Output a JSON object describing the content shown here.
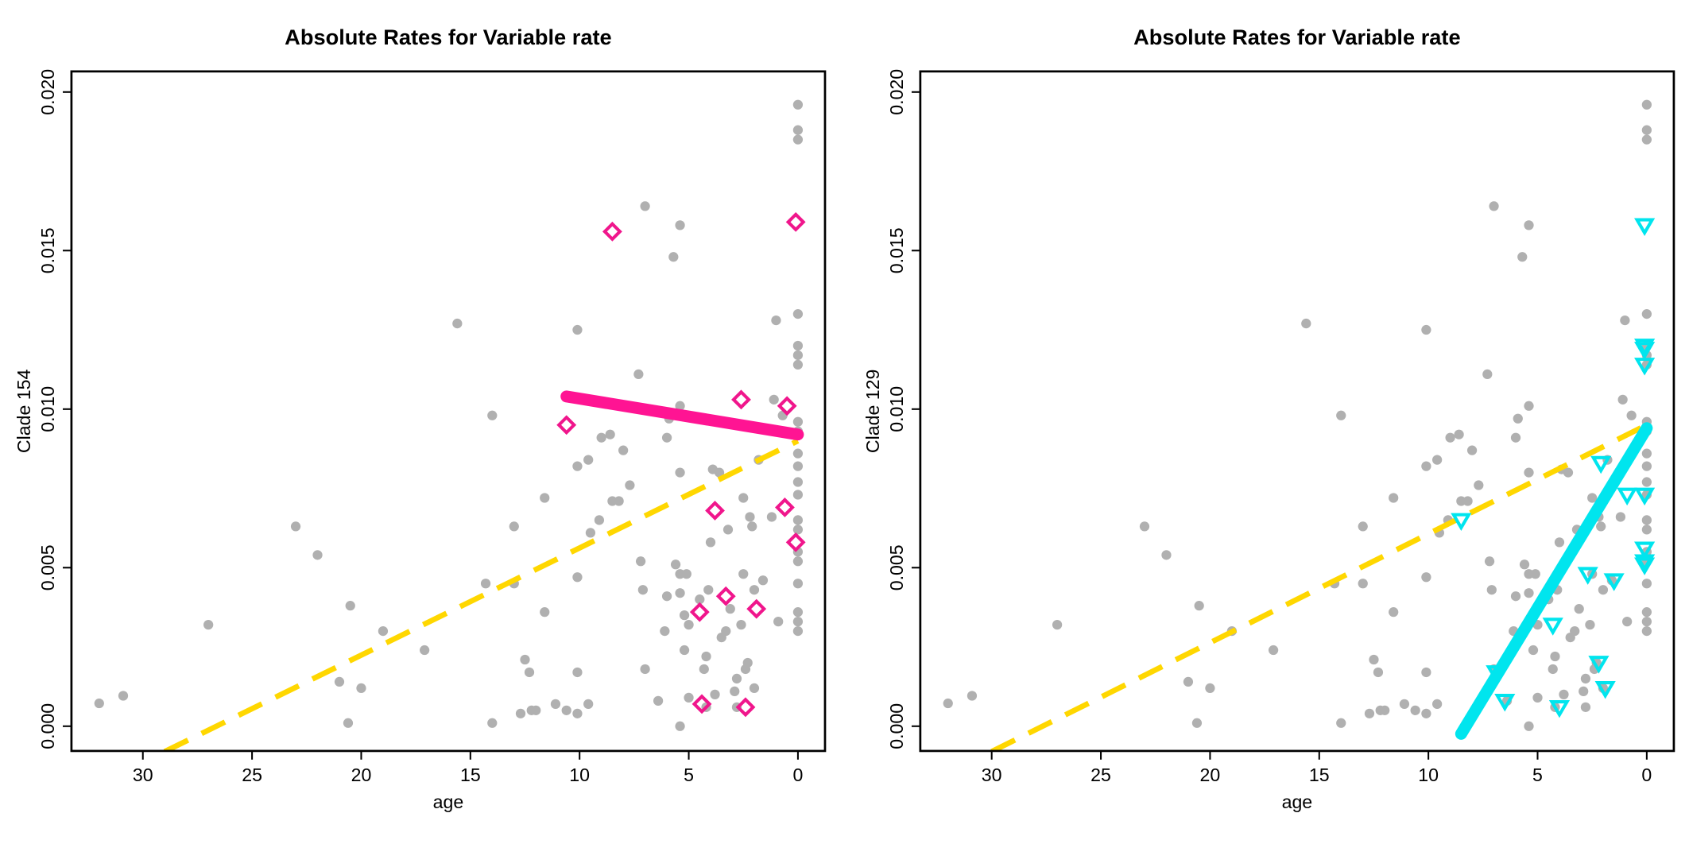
{
  "chart_data": [
    {
      "type": "scatter",
      "title": "Absolute Rates for Variable rate",
      "xlabel": "age",
      "ylabel": "Clade 154",
      "xlim": [
        33.27,
        -1.24
      ],
      "ylim": [
        -0.00078,
        0.02065
      ],
      "xticks": [
        30,
        25,
        20,
        15,
        10,
        5,
        0
      ],
      "yticks": [
        {
          "value": 0,
          "label": "0.000"
        },
        {
          "value": 0.005,
          "label": "0.005"
        },
        {
          "value": 0.01,
          "label": "0.010"
        },
        {
          "value": 0.015,
          "label": "0.015"
        },
        {
          "value": 0.02,
          "label": "0.020"
        }
      ],
      "series": [
        {
          "mode": "markers",
          "marker": "circle",
          "color": "#b0b0b0",
          "x": [
            32.0,
            30.9,
            27.0,
            23.0,
            22.0,
            21.0,
            20.6,
            20.5,
            20.0,
            19.0,
            17.1,
            15.6,
            14.0,
            14.0,
            14.3,
            13.0,
            13.0,
            12.7,
            12.5,
            12.3,
            12.2,
            12.0,
            11.6,
            11.6,
            11.1,
            10.6,
            10.1,
            10.1,
            10.1,
            10.1,
            10.1,
            9.6,
            9.6,
            9.5,
            9.1,
            9.0,
            8.6,
            8.5,
            8.2,
            8.0,
            7.7,
            7.3,
            7.2,
            7.0,
            7.1,
            7.0,
            6.4,
            6.1,
            6.0,
            6.0,
            5.9,
            5.7,
            5.6,
            5.4,
            5.4,
            5.4,
            5.4,
            5.4,
            5.2,
            5.2,
            5.0,
            5.4,
            5.1,
            5.0,
            4.5,
            4.3,
            4.2,
            4.2,
            4.1,
            4.0,
            3.9,
            3.8,
            3.6,
            3.5,
            3.3,
            3.2,
            3.1,
            2.9,
            2.8,
            2.8,
            2.6,
            2.5,
            2.5,
            2.4,
            2.3,
            2.2,
            2.1,
            2.0,
            2.0,
            1.8,
            1.6,
            1.2,
            1.0,
            1.1,
            0.9,
            0.7,
            0,
            0,
            0,
            0,
            0,
            0,
            0,
            0,
            0,
            0,
            0,
            0,
            0,
            0,
            0,
            0,
            0,
            0,
            0,
            0,
            0
          ],
          "values": [
            0.00072,
            0.00096,
            0.0032,
            0.0063,
            0.0054,
            0.0014,
            0.0001,
            0.0038,
            0.0012,
            0.003,
            0.0024,
            0.0127,
            0.0098,
            0.0001,
            0.0045,
            0.0063,
            0.0045,
            0.0004,
            0.0021,
            0.0017,
            0.0005,
            0.0005,
            0.0036,
            0.0072,
            0.0007,
            0.0005,
            0.0125,
            0.0047,
            0.0017,
            0.0004,
            0.0082,
            0.0084,
            0.0007,
            0.0061,
            0.0065,
            0.0091,
            0.0092,
            0.0071,
            0.0071,
            0.0087,
            0.0076,
            0.0111,
            0.0052,
            0.0164,
            0.0043,
            0.0018,
            0.0008,
            0.003,
            0.0091,
            0.0041,
            0.0097,
            0.0148,
            0.0051,
            0.0101,
            0.0158,
            0.008,
            0.0048,
            0.0042,
            0.0035,
            0.0024,
            0.0009,
            0.0,
            0.0048,
            0.0032,
            0.004,
            0.0018,
            0.0022,
            0.0006,
            0.0043,
            0.0058,
            0.0081,
            0.001,
            0.008,
            0.0028,
            0.003,
            0.0062,
            0.0037,
            0.0011,
            0.0006,
            0.0015,
            0.0032,
            0.0072,
            0.0048,
            0.0018,
            0.002,
            0.0066,
            0.0063,
            0.0043,
            0.0012,
            0.0084,
            0.0046,
            0.0066,
            0.0128,
            0.0103,
            0.0033,
            0.0098,
            0.0196,
            0.0188,
            0.0185,
            0.013,
            0.012,
            0.0117,
            0.0114,
            0.0096,
            0.0093,
            0.0086,
            0.0082,
            0.0077,
            0.0073,
            0.0065,
            0.0062,
            0.0055,
            0.0052,
            0.0045,
            0.0036,
            0.0033,
            0.003
          ]
        },
        {
          "mode": "lines",
          "dash": true,
          "color": "#ffd700",
          "x": [
            29.0,
            0.0
          ],
          "values": [
            -0.0008,
            0.009
          ]
        },
        {
          "mode": "markers",
          "marker": "diamond",
          "color": "#f0168c",
          "x": [
            8.5,
            10.6,
            0.1,
            2.6,
            0.5,
            3.8,
            0.6,
            0.1,
            3.3,
            4.5,
            1.9,
            4.4,
            2.4
          ],
          "values": [
            0.0156,
            0.0095,
            0.0159,
            0.0103,
            0.0101,
            0.0068,
            0.0069,
            0.0058,
            0.0041,
            0.0036,
            0.0037,
            0.0007,
            0.0006
          ]
        },
        {
          "mode": "lines",
          "dash": false,
          "color": "#ff1493",
          "x": [
            10.6,
            0.0
          ],
          "values": [
            0.0104,
            0.0092
          ]
        }
      ]
    },
    {
      "type": "scatter",
      "title": "Absolute Rates for Variable rate",
      "xlabel": "age",
      "ylabel": "Clade 129",
      "xlim": [
        33.27,
        -1.24
      ],
      "ylim": [
        -0.00078,
        0.02065
      ],
      "xticks": [
        30,
        25,
        20,
        15,
        10,
        5,
        0
      ],
      "yticks": [
        {
          "value": 0,
          "label": "0.000"
        },
        {
          "value": 0.005,
          "label": "0.005"
        },
        {
          "value": 0.01,
          "label": "0.010"
        },
        {
          "value": 0.015,
          "label": "0.015"
        },
        {
          "value": 0.02,
          "label": "0.020"
        }
      ],
      "series": [
        {
          "mode": "markers",
          "marker": "circle",
          "color": "#b0b0b0",
          "x": [
            32.0,
            30.9,
            27.0,
            23.0,
            22.0,
            21.0,
            20.6,
            20.5,
            20.0,
            19.0,
            17.1,
            15.6,
            14.0,
            14.0,
            14.3,
            13.0,
            13.0,
            12.7,
            12.5,
            12.3,
            12.2,
            12.0,
            11.6,
            11.6,
            11.1,
            10.6,
            10.1,
            10.1,
            10.1,
            10.1,
            10.1,
            9.6,
            9.6,
            9.5,
            9.1,
            9.0,
            8.6,
            8.5,
            8.2,
            8.0,
            7.7,
            7.3,
            7.2,
            7.0,
            7.1,
            7.0,
            6.4,
            6.1,
            6.0,
            6.0,
            5.9,
            5.7,
            5.6,
            5.4,
            5.4,
            5.4,
            5.4,
            5.4,
            5.2,
            5.2,
            5.0,
            5.4,
            5.1,
            5.0,
            4.5,
            4.3,
            4.2,
            4.2,
            4.1,
            4.0,
            3.9,
            3.8,
            3.6,
            3.5,
            3.3,
            3.2,
            3.1,
            2.9,
            2.8,
            2.8,
            2.6,
            2.5,
            2.5,
            2.4,
            2.3,
            2.2,
            2.1,
            2.0,
            2.0,
            1.8,
            1.6,
            1.2,
            1.0,
            1.1,
            0.9,
            0.7,
            0,
            0,
            0,
            0,
            0,
            0,
            0,
            0,
            0,
            0,
            0,
            0,
            0,
            0,
            0,
            0,
            0,
            0,
            0,
            0,
            0
          ],
          "values": [
            0.00072,
            0.00096,
            0.0032,
            0.0063,
            0.0054,
            0.0014,
            0.0001,
            0.0038,
            0.0012,
            0.003,
            0.0024,
            0.0127,
            0.0098,
            0.0001,
            0.0045,
            0.0063,
            0.0045,
            0.0004,
            0.0021,
            0.0017,
            0.0005,
            0.0005,
            0.0036,
            0.0072,
            0.0007,
            0.0005,
            0.0125,
            0.0047,
            0.0017,
            0.0004,
            0.0082,
            0.0084,
            0.0007,
            0.0061,
            0.0065,
            0.0091,
            0.0092,
            0.0071,
            0.0071,
            0.0087,
            0.0076,
            0.0111,
            0.0052,
            0.0164,
            0.0043,
            0.0018,
            0.0008,
            0.003,
            0.0091,
            0.0041,
            0.0097,
            0.0148,
            0.0051,
            0.0101,
            0.0158,
            0.008,
            0.0048,
            0.0042,
            0.0035,
            0.0024,
            0.0009,
            0.0,
            0.0048,
            0.0032,
            0.004,
            0.0018,
            0.0022,
            0.0006,
            0.0043,
            0.0058,
            0.0081,
            0.001,
            0.008,
            0.0028,
            0.003,
            0.0062,
            0.0037,
            0.0011,
            0.0006,
            0.0015,
            0.0032,
            0.0072,
            0.0048,
            0.0018,
            0.002,
            0.0066,
            0.0063,
            0.0043,
            0.0012,
            0.0084,
            0.0046,
            0.0066,
            0.0128,
            0.0103,
            0.0033,
            0.0098,
            0.0196,
            0.0188,
            0.0185,
            0.013,
            0.012,
            0.0117,
            0.0114,
            0.0096,
            0.0093,
            0.0086,
            0.0082,
            0.0077,
            0.0073,
            0.0065,
            0.0062,
            0.0055,
            0.0052,
            0.0045,
            0.0036,
            0.0033,
            0.003
          ]
        },
        {
          "mode": "lines",
          "dash": true,
          "color": "#ffd700",
          "x": [
            30.0,
            0.0
          ],
          "values": [
            -0.0008,
            0.0095
          ]
        },
        {
          "mode": "markers",
          "marker": "triangle-down",
          "color": "#00e5ee",
          "x": [
            8.5,
            0.1,
            0.1,
            0.1,
            0.1,
            2.1,
            0.9,
            0.1,
            0.1,
            0.1,
            0.1,
            2.7,
            1.5,
            4.3,
            2.2,
            6.9,
            1.9,
            6.5,
            4.0
          ],
          "values": [
            0.0065,
            0.0158,
            0.012,
            0.0119,
            0.0114,
            0.0083,
            0.0073,
            0.0073,
            0.0056,
            0.0052,
            0.0051,
            0.0048,
            0.0046,
            0.0032,
            0.002,
            0.0017,
            0.0012,
            0.0008,
            0.0006
          ]
        },
        {
          "mode": "lines",
          "dash": false,
          "color": "#00e5ee",
          "x": [
            8.5,
            0.0
          ],
          "values": [
            -0.00024,
            0.0094
          ]
        }
      ]
    }
  ]
}
